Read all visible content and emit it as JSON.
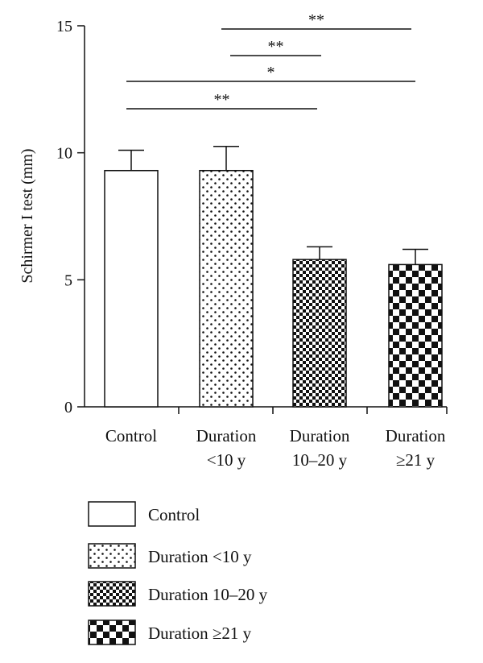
{
  "chart_data": {
    "type": "bar",
    "title": "",
    "xlabel": "",
    "ylabel": "Schirmer I test (mm)",
    "ylim": [
      0,
      15
    ],
    "yticks": [
      0,
      5,
      10,
      15
    ],
    "categories": [
      {
        "lines": [
          "Control"
        ]
      },
      {
        "lines": [
          "Duration",
          "<10 y"
        ]
      },
      {
        "lines": [
          "Duration",
          "10–20 y"
        ]
      },
      {
        "lines": [
          "Duration",
          "≥21 y"
        ]
      }
    ],
    "values": [
      9.3,
      9.3,
      5.8,
      5.6
    ],
    "errors": [
      0.8,
      0.95,
      0.5,
      0.6
    ],
    "patterns": [
      "none",
      "dots",
      "fine-checker",
      "coarse-checker"
    ],
    "significance": [
      {
        "from": 1,
        "to": 3,
        "label": "**"
      },
      {
        "from": 1,
        "to": 2,
        "label": "**"
      },
      {
        "from": 0,
        "to": 3,
        "label": "*"
      },
      {
        "from": 0,
        "to": 2,
        "label": "**"
      }
    ],
    "legend": {
      "position": "bottom",
      "items": [
        "Control",
        "Duration <10 y",
        "Duration 10–20 y",
        "Duration ≥21 y"
      ]
    }
  }
}
